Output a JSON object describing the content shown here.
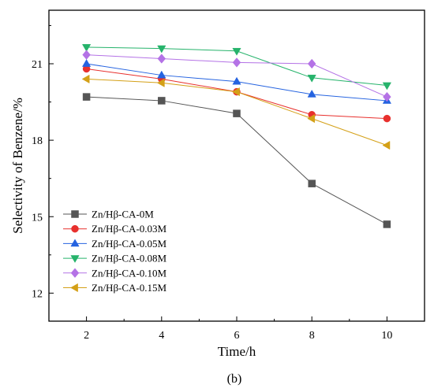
{
  "chart_data": {
    "type": "line",
    "xlabel": "Time/h",
    "ylabel": "Selectivity of Benzene/%",
    "caption": "(b)",
    "x": [
      2,
      4,
      6,
      8,
      10
    ],
    "xlim": [
      1,
      11
    ],
    "ylim": [
      10.9,
      23.1
    ],
    "xticks": [
      2,
      4,
      6,
      8,
      10
    ],
    "yticks": [
      12,
      15,
      18,
      21
    ],
    "grid": false,
    "legend_position": "bottom-left",
    "series": [
      {
        "name": "Zn/Hβ-CA-0M",
        "color": "#555555",
        "marker": "square",
        "values": [
          19.7,
          19.55,
          19.05,
          16.3,
          14.7
        ]
      },
      {
        "name": "Zn/Hβ-CA-0.03M",
        "color": "#e8302d",
        "marker": "circle",
        "values": [
          20.8,
          20.4,
          19.9,
          19.0,
          18.85
        ]
      },
      {
        "name": "Zn/Hβ-CA-0.05M",
        "color": "#2563e0",
        "marker": "triangle-up",
        "values": [
          21.0,
          20.55,
          20.3,
          19.8,
          19.55
        ]
      },
      {
        "name": "Zn/Hβ-CA-0.08M",
        "color": "#26b36b",
        "marker": "triangle-down",
        "values": [
          21.65,
          21.6,
          21.5,
          20.45,
          20.15
        ]
      },
      {
        "name": "Zn/Hβ-CA-0.10M",
        "color": "#b472e6",
        "marker": "diamond",
        "values": [
          21.35,
          21.2,
          21.05,
          21.0,
          19.7
        ]
      },
      {
        "name": "Zn/Hβ-CA-0.15M",
        "color": "#d4a017",
        "marker": "triangle-left",
        "values": [
          20.4,
          20.25,
          19.9,
          18.85,
          17.8
        ]
      }
    ]
  }
}
